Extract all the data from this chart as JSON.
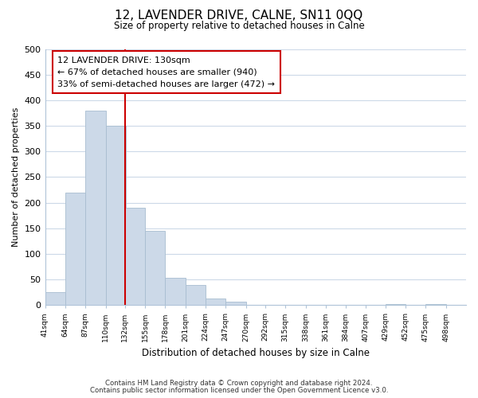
{
  "title": "12, LAVENDER DRIVE, CALNE, SN11 0QQ",
  "subtitle": "Size of property relative to detached houses in Calne",
  "xlabel": "Distribution of detached houses by size in Calne",
  "ylabel": "Number of detached properties",
  "bar_edges": [
    41,
    64,
    87,
    110,
    132,
    155,
    178,
    201,
    224,
    247,
    270,
    292,
    315,
    338,
    361,
    384,
    407,
    429,
    452,
    475,
    498
  ],
  "bar_heights": [
    25,
    220,
    380,
    350,
    190,
    145,
    53,
    40,
    13,
    7,
    0,
    0,
    0,
    0,
    0,
    0,
    0,
    2,
    0,
    2,
    0
  ],
  "bar_color": "#ccd9e8",
  "bar_edge_color": "#a8bdd0",
  "vline_x": 132,
  "vline_color": "#cc0000",
  "annotation_title": "12 LAVENDER DRIVE: 130sqm",
  "annotation_line1": "← 67% of detached houses are smaller (940)",
  "annotation_line2": "33% of semi-detached houses are larger (472) →",
  "annotation_box_color": "#ffffff",
  "annotation_box_edgecolor": "#cc0000",
  "ylim": [
    0,
    500
  ],
  "yticks": [
    0,
    50,
    100,
    150,
    200,
    250,
    300,
    350,
    400,
    450,
    500
  ],
  "xtick_labels": [
    "41sqm",
    "64sqm",
    "87sqm",
    "110sqm",
    "132sqm",
    "155sqm",
    "178sqm",
    "201sqm",
    "224sqm",
    "247sqm",
    "270sqm",
    "292sqm",
    "315sqm",
    "338sqm",
    "361sqm",
    "384sqm",
    "407sqm",
    "429sqm",
    "452sqm",
    "475sqm",
    "498sqm"
  ],
  "footer1": "Contains HM Land Registry data © Crown copyright and database right 2024.",
  "footer2": "Contains public sector information licensed under the Open Government Licence v3.0.",
  "background_color": "#ffffff",
  "grid_color": "#ccd9e8"
}
